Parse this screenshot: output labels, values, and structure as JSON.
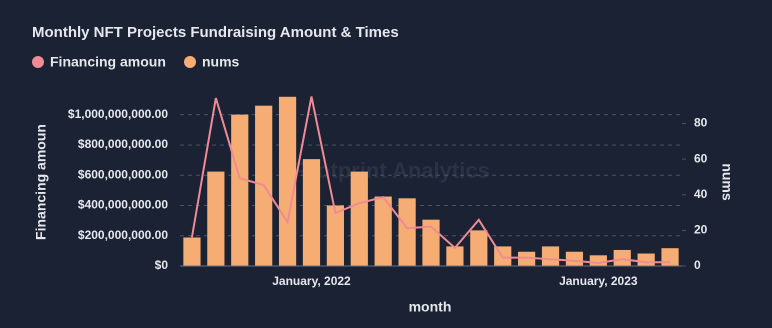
{
  "chart_data": {
    "type": "bar-line",
    "title": "Monthly NFT Projects Fundraising Amount & Times",
    "watermark": "Footprint Analytics",
    "x_label": "month",
    "y_label": "Financing amoun",
    "y2_label": "nums",
    "categories": [
      null,
      null,
      null,
      null,
      null,
      "January, 2022",
      null,
      null,
      null,
      null,
      null,
      null,
      null,
      null,
      null,
      null,
      null,
      "January, 2023",
      null,
      null,
      null
    ],
    "series": [
      {
        "name": "Financing amoun",
        "type": "line",
        "color": "#f08a94",
        "values": [
          190000000,
          1110000000,
          580000000,
          535000000,
          290000000,
          1120000000,
          350000000,
          415000000,
          455000000,
          250000000,
          260000000,
          120000000,
          305000000,
          55000000,
          55000000,
          45000000,
          35000000,
          20000000,
          45000000,
          25000000,
          25000000
        ]
      },
      {
        "name": "nums",
        "type": "bar",
        "axis": "y2",
        "color": "#f5ad73",
        "values": [
          16,
          53,
          85,
          90,
          95,
          60,
          34,
          53,
          39,
          38,
          26,
          11,
          20,
          11,
          8,
          11,
          8,
          6,
          9,
          7,
          10
        ]
      }
    ],
    "ylim": [
      0,
      1130000000
    ],
    "yticks": [
      {
        "value": 0,
        "label": "$0"
      },
      {
        "value": 200000000,
        "label": "$200,000,000.00"
      },
      {
        "value": 400000000,
        "label": "$400,000,000.00"
      },
      {
        "value": 600000000,
        "label": "$600,000,000.00"
      },
      {
        "value": 800000000,
        "label": "$800,000,000.00"
      },
      {
        "value": 1000000000,
        "label": "$1,000,000,000.00"
      }
    ],
    "y2lim": [
      0,
      96
    ],
    "y2ticks": [
      0,
      20,
      40,
      60,
      80
    ],
    "grid": true,
    "legend": "top-left"
  }
}
